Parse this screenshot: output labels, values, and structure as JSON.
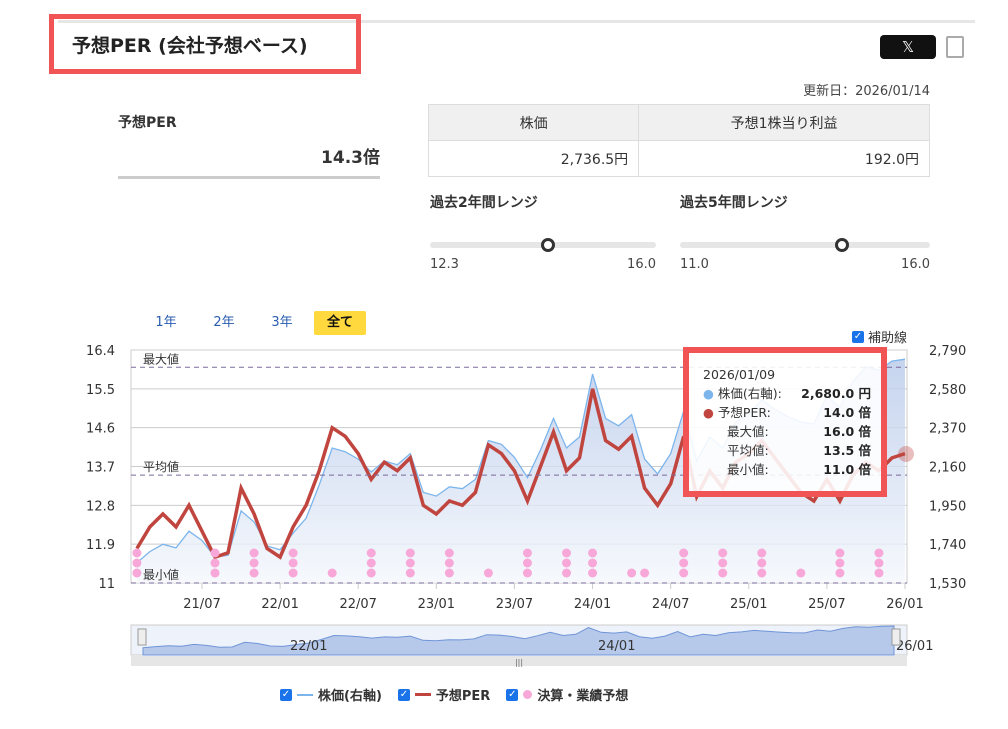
{
  "header": {
    "title": "予想PER (会社予想ベース)",
    "share_x": "𝕏",
    "updated": "更新日：2026/01/14"
  },
  "summary": {
    "per_label": "予想PER",
    "per_value": "14.3倍"
  },
  "info_table": {
    "headers": [
      "株価",
      "予想1株当り利益"
    ],
    "values": [
      "2,736.5円",
      "192.0円"
    ]
  },
  "ranges": [
    {
      "title": "過去2年間レンジ",
      "min": "12.3",
      "max": "16.0",
      "current": 14.3
    },
    {
      "title": "過去5年間レンジ",
      "min": "11.0",
      "max": "16.0",
      "current": 14.3
    }
  ],
  "tabs": [
    {
      "label": "1年"
    },
    {
      "label": "2年"
    },
    {
      "label": "3年"
    },
    {
      "label": "全て",
      "active": true
    }
  ],
  "aux_lines_label": "補助線",
  "tooltip": {
    "date": "2026/01/09",
    "rows": [
      {
        "label": "株価(右軸):",
        "value": "2,680.0 円",
        "color": "#7cb5ec"
      },
      {
        "label": "予想PER:",
        "value": "14.0 倍",
        "color": "#c0453f"
      },
      {
        "label": "最大値:",
        "value": "16.0 倍"
      },
      {
        "label": "平均値:",
        "value": "13.5 倍"
      },
      {
        "label": "最小値:",
        "value": "11.0 倍"
      }
    ]
  },
  "navigator": {
    "labels": [
      "22/01",
      "24/01",
      "26/01"
    ]
  },
  "legend": [
    {
      "label": "株価(右軸)",
      "color": "#7cb5ec"
    },
    {
      "label": "予想PER",
      "color": "#c0453f"
    },
    {
      "label": "決算・業績予想",
      "color": "#f7a8d8"
    }
  ],
  "chart_data": {
    "type": "line",
    "y_left": {
      "ticks": [
        "16.4",
        "15.5",
        "14.6",
        "13.7",
        "12.8",
        "11.9",
        "11"
      ],
      "range": [
        11,
        16.4
      ]
    },
    "y_right": {
      "ticks": [
        "2,790",
        "2,580",
        "2,370",
        "2,160",
        "1,950",
        "1,740",
        "1,530"
      ],
      "range": [
        1530,
        2790
      ]
    },
    "x_ticks": [
      "21/07",
      "22/01",
      "22/07",
      "23/01",
      "23/07",
      "24/01",
      "24/07",
      "25/01",
      "25/07",
      "26/01"
    ],
    "ref_lines": [
      {
        "label": "最大値",
        "value": 16.0
      },
      {
        "label": "平均値",
        "value": 13.5
      },
      {
        "label": "最小値",
        "value": 11.0
      }
    ],
    "x": [
      "21/02",
      "21/03",
      "21/04",
      "21/05",
      "21/06",
      "21/07",
      "21/08",
      "21/09",
      "21/10",
      "21/11",
      "21/12",
      "22/01",
      "22/02",
      "22/03",
      "22/04",
      "22/05",
      "22/06",
      "22/07",
      "22/08",
      "22/09",
      "22/10",
      "22/11",
      "22/12",
      "23/01",
      "23/02",
      "23/03",
      "23/04",
      "23/05",
      "23/06",
      "23/07",
      "23/08",
      "23/09",
      "23/10",
      "23/11",
      "23/12",
      "24/01",
      "24/02",
      "24/03",
      "24/04",
      "24/05",
      "24/06",
      "24/07",
      "24/08",
      "24/09",
      "24/10",
      "24/11",
      "24/12",
      "25/01",
      "25/02",
      "25/03",
      "25/04",
      "25/05",
      "25/06",
      "25/07",
      "25/08",
      "25/09",
      "25/10",
      "25/11",
      "25/12",
      "26/01"
    ],
    "series": [
      {
        "name": "予想PER",
        "axis": "left",
        "values": [
          11.8,
          12.3,
          12.6,
          12.3,
          12.8,
          12.2,
          11.6,
          11.7,
          13.2,
          12.6,
          11.8,
          11.6,
          12.3,
          12.8,
          13.6,
          14.6,
          14.4,
          14.0,
          13.4,
          13.8,
          13.6,
          13.9,
          12.8,
          12.6,
          12.9,
          12.8,
          13.1,
          14.2,
          14.0,
          13.6,
          12.9,
          13.7,
          14.5,
          13.6,
          13.9,
          15.5,
          14.3,
          14.1,
          14.4,
          13.2,
          12.8,
          13.3,
          14.4,
          13.0,
          13.6,
          13.2,
          13.8,
          14.0,
          14.3,
          13.9,
          13.5,
          13.1,
          12.9,
          13.4,
          12.9,
          13.5,
          13.8,
          13.6,
          13.9,
          14.0
        ]
      },
      {
        "name": "株価(右軸)",
        "axis": "right",
        "values": [
          1640,
          1700,
          1740,
          1720,
          1810,
          1760,
          1670,
          1680,
          1920,
          1860,
          1730,
          1710,
          1800,
          1880,
          2060,
          2260,
          2240,
          2200,
          2130,
          2190,
          2170,
          2230,
          2020,
          2000,
          2050,
          2040,
          2090,
          2300,
          2280,
          2210,
          2100,
          2250,
          2420,
          2260,
          2320,
          2660,
          2420,
          2380,
          2440,
          2200,
          2120,
          2230,
          2460,
          2190,
          2320,
          2260,
          2400,
          2440,
          2520,
          2470,
          2430,
          2400,
          2390,
          2540,
          2480,
          2620,
          2700,
          2680,
          2730,
          2740
        ]
      }
    ],
    "events": [
      {
        "x": "21/02",
        "count": 3
      },
      {
        "x": "21/08",
        "count": 3
      },
      {
        "x": "21/11",
        "count": 3
      },
      {
        "x": "22/02",
        "count": 3
      },
      {
        "x": "22/05",
        "count": 1
      },
      {
        "x": "22/08",
        "count": 3
      },
      {
        "x": "22/11",
        "count": 3
      },
      {
        "x": "23/02",
        "count": 3
      },
      {
        "x": "23/05",
        "count": 1
      },
      {
        "x": "23/08",
        "count": 3
      },
      {
        "x": "23/11",
        "count": 3
      },
      {
        "x": "24/01",
        "count": 3
      },
      {
        "x": "24/04",
        "count": 1
      },
      {
        "x": "24/05",
        "count": 1
      },
      {
        "x": "24/08",
        "count": 3
      },
      {
        "x": "24/11",
        "count": 3
      },
      {
        "x": "25/02",
        "count": 3
      },
      {
        "x": "25/05",
        "count": 1
      },
      {
        "x": "25/08",
        "count": 3
      },
      {
        "x": "25/11",
        "count": 3
      }
    ]
  }
}
